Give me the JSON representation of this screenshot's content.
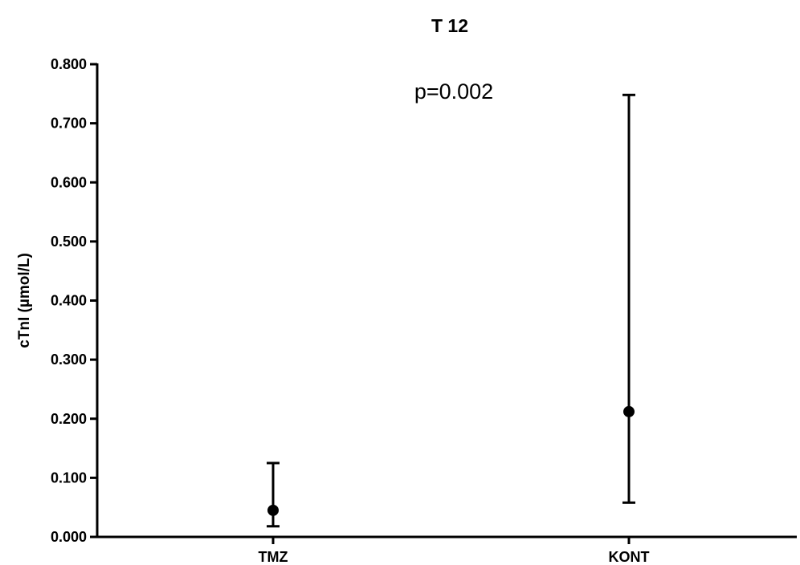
{
  "chart_data": {
    "type": "scatter",
    "title": "T 12",
    "xlabel": "",
    "ylabel": "cTnI (µmol/L)",
    "ylim": [
      0,
      0.8
    ],
    "yticks": [
      0.0,
      0.1,
      0.2,
      0.3,
      0.4,
      0.5,
      0.6,
      0.7,
      0.8
    ],
    "ytick_labels": [
      "0.000",
      "0.100",
      "0.200",
      "0.300",
      "0.400",
      "0.500",
      "0.600",
      "0.700",
      "0.800"
    ],
    "categories": [
      "TMZ",
      "KONT"
    ],
    "series": [
      {
        "values": [
          0.045,
          0.212
        ],
        "error_low": [
          0.018,
          0.058
        ],
        "error_high": [
          0.125,
          0.748
        ]
      }
    ],
    "annotations": [
      {
        "text": "p=0.002"
      }
    ],
    "grid": false,
    "legend": "none"
  }
}
